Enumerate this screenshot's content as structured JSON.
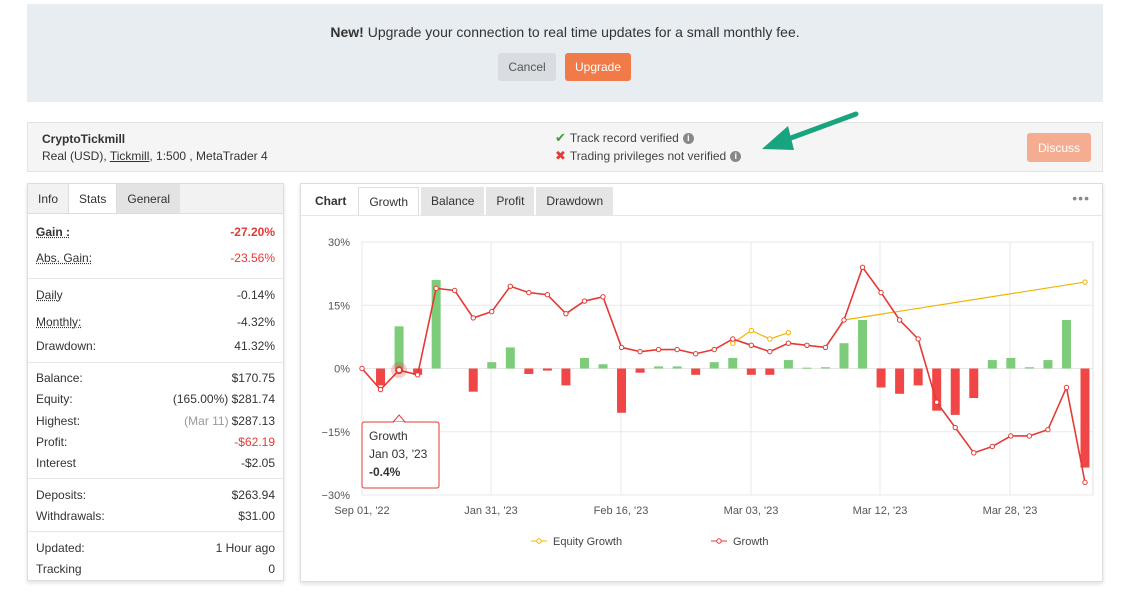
{
  "banner": {
    "bold": "New!",
    "text": "Upgrade your connection to real time updates for a small monthly fee.",
    "cancel_label": "Cancel",
    "upgrade_label": "Upgrade"
  },
  "account": {
    "name": "CryptoTickmill",
    "sub_prefix": "Real (USD),",
    "broker": "Tickmill",
    "sub_suffix": ", 1:500 , MetaTrader 4",
    "track_record": "Track record verified",
    "trading_priv": "Trading privileges not verified",
    "discuss_label": "Discuss"
  },
  "stats_tabs": [
    "Info",
    "Stats",
    "General"
  ],
  "stats": {
    "gain_label": "Gain :",
    "gain": "-27.20%",
    "abs_gain_label": "Abs. Gain:",
    "abs_gain": "-23.56%",
    "daily_label": "Daily",
    "daily": "-0.14%",
    "monthly_label": "Monthly:",
    "monthly": "-4.32%",
    "drawdown_label": "Drawdown:",
    "drawdown": "41.32%",
    "balance_label": "Balance:",
    "balance": "$170.75",
    "equity_label": "Equity:",
    "equity_pct": "(165.00%)",
    "equity": "$281.74",
    "highest_label": "Highest:",
    "highest_date": "(Mar 11)",
    "highest": "$287.13",
    "profit_label": "Profit:",
    "profit": "-$62.19",
    "interest_label": "Interest",
    "interest": "-$2.05",
    "deposits_label": "Deposits:",
    "deposits": "$263.94",
    "withdrawals_label": "Withdrawals:",
    "withdrawals": "$31.00",
    "updated_label": "Updated:",
    "updated": "1 Hour ago",
    "tracking_label": "Tracking",
    "tracking": "0"
  },
  "chart_tabs": {
    "label": "Chart",
    "tabs": [
      "Growth",
      "Balance",
      "Profit",
      "Drawdown"
    ]
  },
  "tooltip": {
    "title": "Growth",
    "date": "Jan 03, '23",
    "value": "-0.4%"
  },
  "chart_data": {
    "type": "line",
    "yticks": [
      "30%",
      "15%",
      "0%",
      "−15%",
      "−30%"
    ],
    "ylim": [
      -30,
      30
    ],
    "xticks": [
      "Sep 01, '22",
      "Jan 31, '23",
      "Feb 16, '23",
      "Mar 03, '23",
      "Mar 12, '23",
      "Mar 28, '23"
    ],
    "legend": [
      "Equity Growth",
      "Growth"
    ],
    "colors": {
      "growth": "#e53935",
      "equity": "#f0b400",
      "bar_pos": "#7ccc7a",
      "bar_neg": "#f04646"
    },
    "growth": [
      0,
      -5,
      -0.4,
      -1.5,
      19,
      18.5,
      12,
      13.5,
      19.5,
      18,
      17.5,
      13,
      16,
      17,
      5,
      4,
      4.5,
      4.5,
      3.5,
      4.5,
      7,
      5.5,
      4,
      6,
      5.5,
      5,
      11.5,
      24,
      18,
      11.5,
      7,
      -8,
      -14,
      -20,
      -18.5,
      -16,
      -16,
      -14.5,
      -4.5,
      -27
    ],
    "equity": [
      null,
      null,
      null,
      null,
      null,
      null,
      null,
      null,
      null,
      null,
      null,
      null,
      null,
      null,
      null,
      null,
      null,
      null,
      null,
      null,
      6,
      9,
      7,
      8.5,
      null,
      null,
      null,
      null,
      null,
      null,
      null,
      null,
      null,
      null,
      null,
      null,
      null,
      null,
      null,
      null
    ],
    "bars": [
      0,
      -4,
      10,
      -1.5,
      21,
      0,
      -5.5,
      1.5,
      5,
      -1.3,
      -0.5,
      -4,
      2.5,
      1,
      -10.5,
      -1,
      0.5,
      0.5,
      -1.5,
      1.5,
      2.5,
      -1.5,
      -1.5,
      2,
      0.2,
      0.3,
      6,
      11.5,
      -4.5,
      -6,
      -4,
      -10,
      -11,
      -7,
      2,
      2.5,
      0.3,
      2,
      11.5,
      -23.5
    ]
  }
}
